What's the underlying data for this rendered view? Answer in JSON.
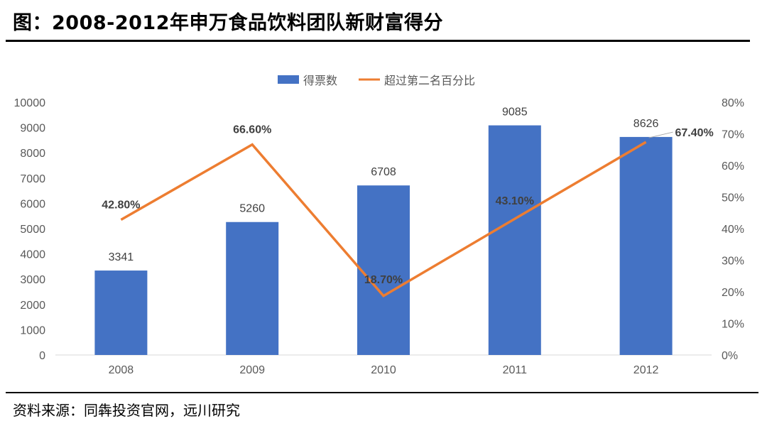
{
  "title": "图：2008-2012年申万食品饮料团队新财富得分",
  "source": "资料来源：同犇投资官网，远川研究",
  "colors": {
    "bar": "#4472C4",
    "line": "#ED7D31",
    "text": "#595959"
  },
  "chart_data": {
    "type": "bar",
    "title": "图：2008-2012年申万食品饮料团队新财富得分",
    "categories": [
      "2008",
      "2009",
      "2010",
      "2011",
      "2012"
    ],
    "series": [
      {
        "name": "得票数",
        "type": "bar",
        "axis": "left",
        "values": [
          3341,
          5260,
          6708,
          9085,
          8626
        ],
        "labels": [
          "3341",
          "5260",
          "6708",
          "9085",
          "8626"
        ]
      },
      {
        "name": "超过第二名百分比",
        "type": "line",
        "axis": "right",
        "values": [
          42.8,
          66.6,
          18.7,
          43.1,
          67.4
        ],
        "labels": [
          "42.80%",
          "66.60%",
          "18.70%",
          "43.10%",
          "67.40%"
        ]
      }
    ],
    "y_left": {
      "min": 0,
      "max": 10000,
      "ticks": [
        "0",
        "1000",
        "2000",
        "3000",
        "4000",
        "5000",
        "6000",
        "7000",
        "8000",
        "9000",
        "10000"
      ]
    },
    "y_right": {
      "min": 0,
      "max": 80,
      "ticks": [
        "0%",
        "10%",
        "20%",
        "30%",
        "40%",
        "50%",
        "60%",
        "70%",
        "80%"
      ]
    },
    "grid": false,
    "legend": "top"
  }
}
